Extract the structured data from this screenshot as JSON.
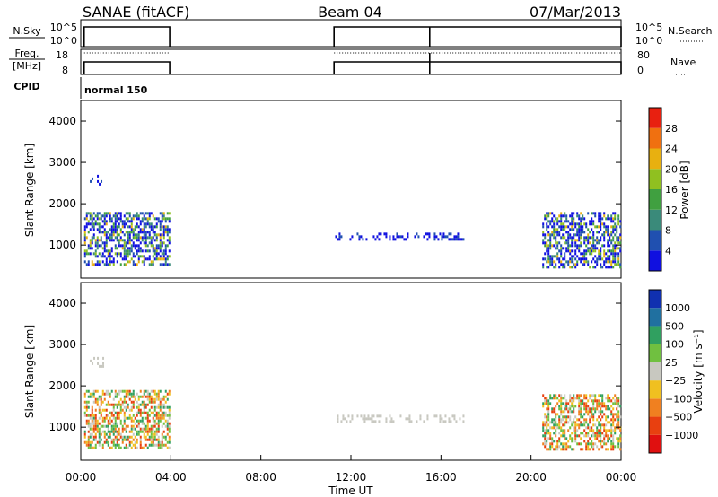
{
  "header": {
    "station": "SANAE (fitACF)",
    "beam": "Beam 04",
    "date": "07/Mar/2013"
  },
  "params": {
    "nsky_label": "N.Sky",
    "nsky_ticks": [
      "10^5",
      "10^0"
    ],
    "nsearch_label": "N.Search",
    "nsearch_ticks": [
      "10^5",
      "10^0"
    ],
    "freq_label": "Freq.",
    "freq_unit": "[MHz]",
    "freq_ticks": [
      "18",
      "8"
    ],
    "nave_label": "Nave",
    "nave_ticks": [
      "80",
      "0"
    ],
    "cpid_label": "CPID",
    "cpid_value": "normal 150",
    "on_intervals_hours": [
      [
        0.15,
        3.95
      ],
      [
        11.25,
        24.0
      ]
    ],
    "break_hour": 15.5
  },
  "chart_data": [
    {
      "type": "heatmap",
      "panel": "power",
      "ylabel": "Slant Range [km]",
      "ylim": [
        200,
        4500
      ],
      "yticks": [
        1000,
        2000,
        3000,
        4000
      ],
      "xlim": [
        0,
        24
      ],
      "colorbar": {
        "label": "Power [dB]",
        "ticks": [
          "4",
          "8",
          "12",
          "16",
          "20",
          "24",
          "28"
        ],
        "colors": [
          "#1010e0",
          "#2050b0",
          "#3a8a7a",
          "#40a040",
          "#90c020",
          "#e8b010",
          "#f07010",
          "#e82010"
        ]
      },
      "echo_regions": [
        {
          "hours": [
            0.15,
            3.95
          ],
          "range_km": [
            500,
            1800
          ],
          "level": "mixed"
        },
        {
          "hours": [
            0.4,
            1.0
          ],
          "range_km": [
            2500,
            2700
          ],
          "level": "low"
        },
        {
          "hours": [
            11.3,
            17.0
          ],
          "range_km": [
            1150,
            1300
          ],
          "level": "low"
        },
        {
          "hours": [
            20.5,
            24.0
          ],
          "range_km": [
            450,
            1800
          ],
          "level": "mixed"
        }
      ]
    },
    {
      "type": "heatmap",
      "panel": "velocity",
      "ylabel": "Slant Range [km]",
      "ylim": [
        200,
        4500
      ],
      "yticks": [
        1000,
        2000,
        3000,
        4000
      ],
      "xlim": [
        0,
        24
      ],
      "xticks": [
        "00:00",
        "04:00",
        "08:00",
        "12:00",
        "16:00",
        "20:00",
        "00:00"
      ],
      "xlabel": "Time UT",
      "colorbar": {
        "label": "Velocity [m s⁻¹]",
        "ticks": [
          "1000",
          "500",
          "100",
          "25",
          "−25",
          "−100",
          "−500",
          "−1000"
        ],
        "colors": [
          "#1030b0",
          "#2070a0",
          "#30a060",
          "#70c040",
          "#c8c8c0",
          "#f0c020",
          "#f08020",
          "#e84010",
          "#e01010"
        ]
      },
      "echo_regions": [
        {
          "hours": [
            0.15,
            3.95
          ],
          "range_km": [
            500,
            1900
          ],
          "level": "mixed"
        },
        {
          "hours": [
            0.4,
            1.0
          ],
          "range_km": [
            2500,
            2700
          ],
          "level": "ground"
        },
        {
          "hours": [
            11.3,
            17.0
          ],
          "range_km": [
            1150,
            1300
          ],
          "level": "ground"
        },
        {
          "hours": [
            20.5,
            24.0
          ],
          "range_km": [
            450,
            1800
          ],
          "level": "mixed"
        }
      ]
    }
  ]
}
